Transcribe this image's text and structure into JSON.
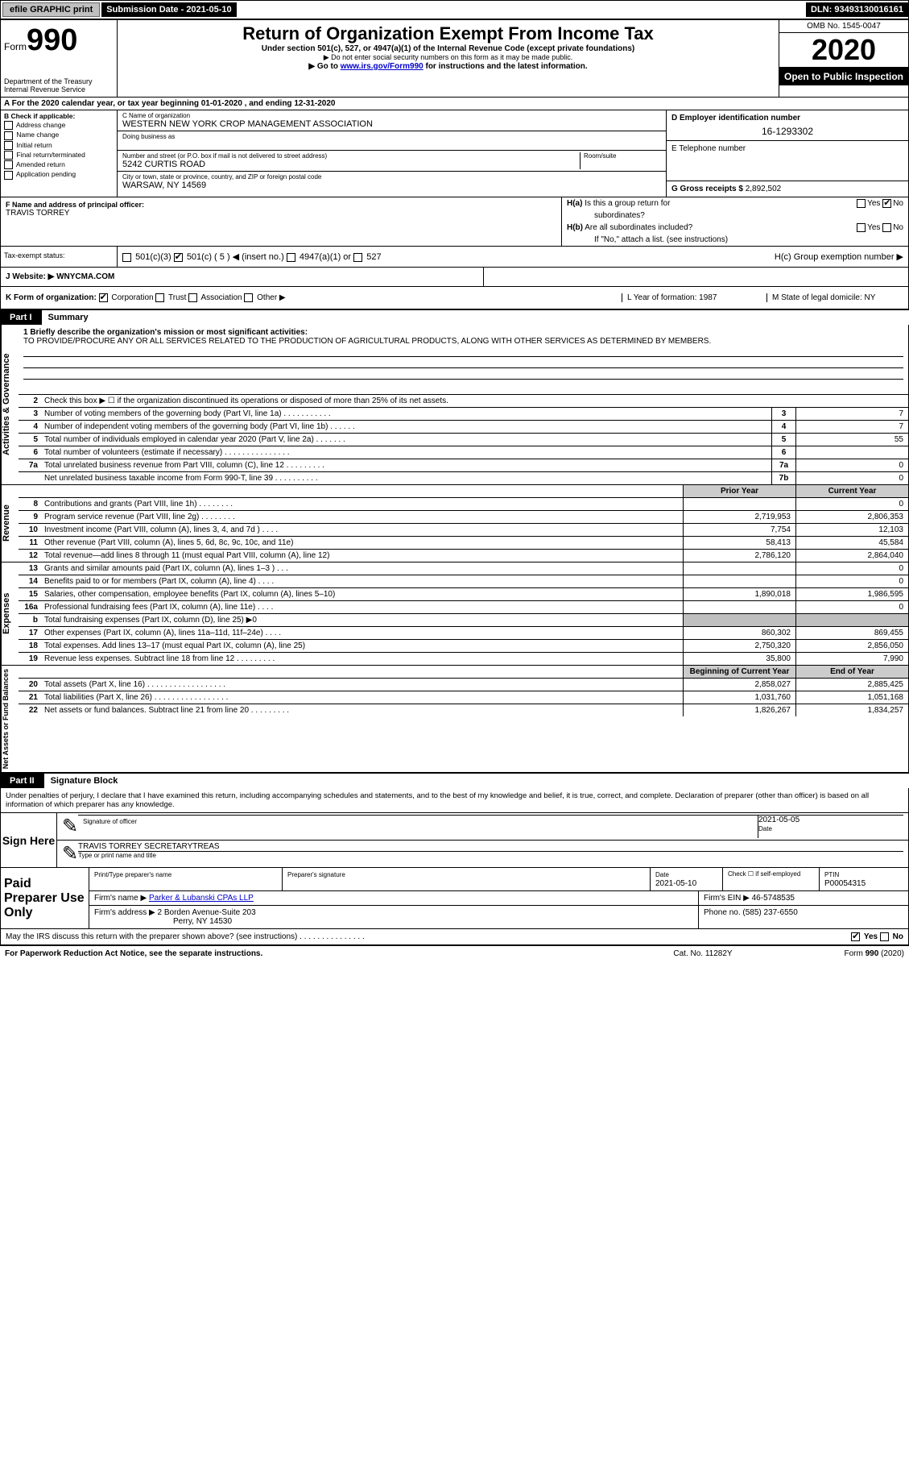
{
  "topbar": {
    "efile": "efile GRAPHIC print",
    "submission": "Submission Date - 2021-05-10",
    "dln": "DLN: 93493130016161"
  },
  "header": {
    "form_label": "Form",
    "form_num": "990",
    "title": "Return of Organization Exempt From Income Tax",
    "subtitle": "Under section 501(c), 527, or 4947(a)(1) of the Internal Revenue Code (except private foundations)",
    "note1": "▶ Do not enter social security numbers on this form as it may be made public.",
    "note2_pre": "▶ Go to ",
    "note2_link": "www.irs.gov/Form990",
    "note2_post": " for instructions and the latest information.",
    "omb": "OMB No. 1545-0047",
    "year": "2020",
    "open": "Open to Public Inspection",
    "dept": "Department of the Treasury Internal Revenue Service"
  },
  "rowA": "A For the 2020 calendar year, or tax year beginning 01-01-2020   , and ending 12-31-2020",
  "boxB": {
    "title": "B Check if applicable:",
    "items": [
      "Address change",
      "Name change",
      "Initial return",
      "Final return/terminated",
      "Amended return",
      "Application pending"
    ]
  },
  "boxC": {
    "name_lbl": "C Name of organization",
    "name": "WESTERN NEW YORK CROP MANAGEMENT ASSOCIATION",
    "dba_lbl": "Doing business as",
    "addr_lbl": "Number and street (or P.O. box if mail is not delivered to street address)",
    "room_lbl": "Room/suite",
    "addr": "5242 CURTIS ROAD",
    "city_lbl": "City or town, state or province, country, and ZIP or foreign postal code",
    "city": "WARSAW, NY  14569"
  },
  "boxD": {
    "lbl": "D Employer identification number",
    "val": "16-1293302"
  },
  "boxE": {
    "lbl": "E Telephone number",
    "val": ""
  },
  "boxG": {
    "lbl": "G Gross receipts $",
    "val": "2,892,502"
  },
  "boxF": {
    "lbl": "F  Name and address of principal officer:",
    "val": "TRAVIS TORREY"
  },
  "boxH": {
    "ha": "H(a)  Is this a group return for subordinates?",
    "hb": "H(b)  Are all subordinates included?",
    "hb_note": "If \"No,\" attach a list. (see instructions)",
    "hc": "H(c)  Group exemption number ▶",
    "yes": "Yes",
    "no": "No"
  },
  "tax": {
    "lbl": "Tax-exempt status:",
    "c3": "501(c)(3)",
    "c": "501(c) ( 5 ) ◀ (insert no.)",
    "a1": "4947(a)(1) or",
    "s527": "527"
  },
  "web": {
    "lbl": "J  Website: ▶",
    "val": "WNYCMA.COM"
  },
  "rowK": {
    "k": "K Form of organization:",
    "opts": [
      "Corporation",
      "Trust",
      "Association",
      "Other ▶"
    ],
    "l": "L Year of formation: 1987",
    "m": "M State of legal domicile: NY"
  },
  "part1": {
    "tab": "Part I",
    "title": "Summary",
    "q1": "1  Briefly describe the organization's mission or most significant activities:",
    "q1_text": "TO PROVIDE/PROCURE ANY OR ALL SERVICES RELATED TO THE PRODUCTION OF AGRICULTURAL PRODUCTS, ALONG WITH OTHER SERVICES AS DETERMINED BY MEMBERS.",
    "q2": "Check this box ▶ ☐  if the organization discontinued its operations or disposed of more than 25% of its net assets.",
    "rows_gov": [
      {
        "n": "3",
        "t": "Number of voting members of the governing body (Part VI, line 1a)  .  .  .  .  .  .  .  .  .  .  .",
        "b": "3",
        "v": "7"
      },
      {
        "n": "4",
        "t": "Number of independent voting members of the governing body (Part VI, line 1b)  .  .  .  .  .  .",
        "b": "4",
        "v": "7"
      },
      {
        "n": "5",
        "t": "Total number of individuals employed in calendar year 2020 (Part V, line 2a)  .  .  .  .  .  .  .",
        "b": "5",
        "v": "55"
      },
      {
        "n": "6",
        "t": "Total number of volunteers (estimate if necessary)   .  .  .  .  .  .  .  .  .  .  .  .  .  .  .",
        "b": "6",
        "v": ""
      },
      {
        "n": "7a",
        "t": "Total unrelated business revenue from Part VIII, column (C), line 12  .  .  .  .  .  .  .  .  .",
        "b": "7a",
        "v": "0"
      },
      {
        "n": "",
        "t": "Net unrelated business taxable income from Form 990-T, line 39   .  .  .  .  .  .  .  .  .  .",
        "b": "7b",
        "v": "0"
      }
    ],
    "prior": "Prior Year",
    "current": "Current Year",
    "rows_rev": [
      {
        "n": "8",
        "t": "Contributions and grants (Part VIII, line 1h)   .  .  .  .  .  .  .  .",
        "p": "",
        "c": "0"
      },
      {
        "n": "9",
        "t": "Program service revenue (Part VIII, line 2g)   .  .  .  .  .  .  .  .",
        "p": "2,719,953",
        "c": "2,806,353"
      },
      {
        "n": "10",
        "t": "Investment income (Part VIII, column (A), lines 3, 4, and 7d )  .  .  .  .",
        "p": "7,754",
        "c": "12,103"
      },
      {
        "n": "11",
        "t": "Other revenue (Part VIII, column (A), lines 5, 6d, 8c, 9c, 10c, and 11e)",
        "p": "58,413",
        "c": "45,584"
      },
      {
        "n": "12",
        "t": "Total revenue—add lines 8 through 11 (must equal Part VIII, column (A), line 12)",
        "p": "2,786,120",
        "c": "2,864,040"
      }
    ],
    "rows_exp": [
      {
        "n": "13",
        "t": "Grants and similar amounts paid (Part IX, column (A), lines 1–3 )  .  .  .",
        "p": "",
        "c": "0"
      },
      {
        "n": "14",
        "t": "Benefits paid to or for members (Part IX, column (A), line 4)  .  .  .  .",
        "p": "",
        "c": "0"
      },
      {
        "n": "15",
        "t": "Salaries, other compensation, employee benefits (Part IX, column (A), lines 5–10)",
        "p": "1,890,018",
        "c": "1,986,595"
      },
      {
        "n": "16a",
        "t": "Professional fundraising fees (Part IX, column (A), line 11e)  .  .  .  .",
        "p": "",
        "c": "0"
      },
      {
        "n": "b",
        "t": "Total fundraising expenses (Part IX, column (D), line 25) ▶0",
        "p": "GRAY",
        "c": "GRAY"
      },
      {
        "n": "17",
        "t": "Other expenses (Part IX, column (A), lines 11a–11d, 11f–24e)  .  .  .  .",
        "p": "860,302",
        "c": "869,455"
      },
      {
        "n": "18",
        "t": "Total expenses. Add lines 13–17 (must equal Part IX, column (A), line 25)",
        "p": "2,750,320",
        "c": "2,856,050"
      },
      {
        "n": "19",
        "t": "Revenue less expenses. Subtract line 18 from line 12 .  .  .  .  .  .  .  .  .",
        "p": "35,800",
        "c": "7,990"
      }
    ],
    "beg": "Beginning of Current Year",
    "end": "End of Year",
    "rows_net": [
      {
        "n": "20",
        "t": "Total assets (Part X, line 16)  .  .  .  .  .  .  .  .  .  .  .  .  .  .  .  .  .  .",
        "p": "2,858,027",
        "c": "2,885,425"
      },
      {
        "n": "21",
        "t": "Total liabilities (Part X, line 26)  .  .  .  .  .  .  .  .  .  .  .  .  .  .  .  .  .",
        "p": "1,031,760",
        "c": "1,051,168"
      },
      {
        "n": "22",
        "t": "Net assets or fund balances. Subtract line 21 from line 20 .  .  .  .  .  .  .  .  .",
        "p": "1,826,267",
        "c": "1,834,257"
      }
    ],
    "side_gov": "Activities & Governance",
    "side_rev": "Revenue",
    "side_exp": "Expenses",
    "side_net": "Net Assets or Fund Balances"
  },
  "part2": {
    "tab": "Part II",
    "title": "Signature Block",
    "intro": "Under penalties of perjury, I declare that I have examined this return, including accompanying schedules and statements, and to the best of my knowledge and belief, it is true, correct, and complete. Declaration of preparer (other than officer) is based on all information of which preparer has any knowledge.",
    "sign": "Sign Here",
    "sig_lbl": "Signature of officer",
    "date_lbl": "Date",
    "sig_date": "2021-05-05",
    "name": "TRAVIS TORREY SECRETARYTREAS",
    "name_lbl": "Type or print name and title",
    "paid": "Paid Preparer Use Only",
    "pp_name_lbl": "Print/Type preparer's name",
    "pp_sig_lbl": "Preparer's signature",
    "pp_date_lbl": "Date",
    "pp_date": "2021-05-10",
    "pp_check": "Check ☐ if self-employed",
    "ptin_lbl": "PTIN",
    "ptin": "P00054315",
    "firm_name_lbl": "Firm's name   ▶",
    "firm_name": "Parker & Lubanski CPAs LLP",
    "firm_ein_lbl": "Firm's EIN ▶",
    "firm_ein": "46-5748535",
    "firm_addr_lbl": "Firm's address ▶",
    "firm_addr": "2 Borden Avenue-Suite 203",
    "firm_city": "Perry, NY  14530",
    "phone_lbl": "Phone no.",
    "phone": "(585) 237-6550",
    "may": "May the IRS discuss this return with the preparer shown above? (see instructions)   .  .  .  .  .  .  .  .  .  .  .  .  .  .  .",
    "yes": "Yes",
    "no": "No"
  },
  "footer": {
    "left": "For Paperwork Reduction Act Notice, see the separate instructions.",
    "mid": "Cat. No. 11282Y",
    "right": "Form 990 (2020)"
  }
}
